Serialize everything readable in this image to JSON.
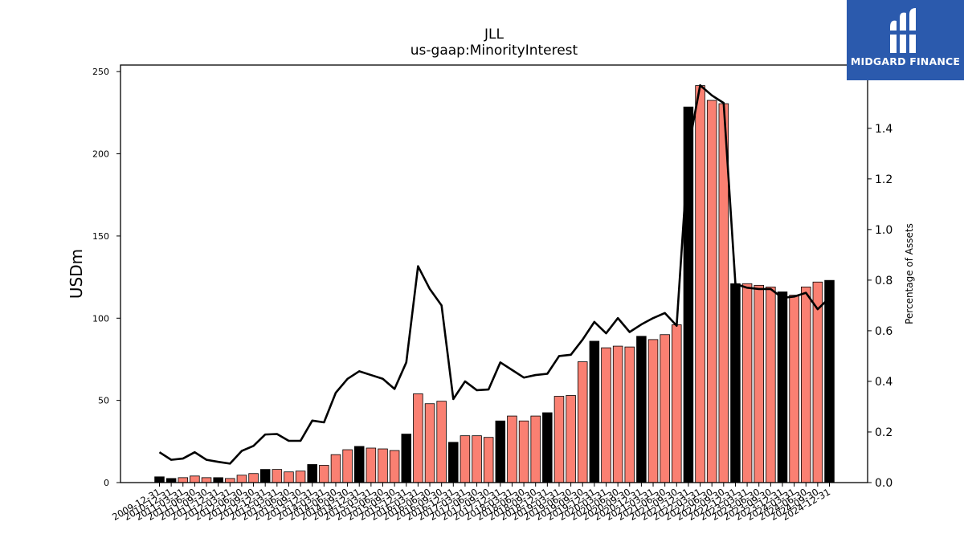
{
  "brand": {
    "name": "MIDGARD FINANCE",
    "logo_icon": "midgard-logo-icon",
    "bg_color": "#2b5aad"
  },
  "chart_data": {
    "type": "bar",
    "title": "JLL",
    "subtitle": "us-gaap:MinorityInterest",
    "ylabel": "USDm",
    "y2label": "Percentage of Assets",
    "ylim": [
      0,
      254
    ],
    "y2lim": [
      0,
      1.65
    ],
    "yticks": [
      0,
      50,
      100,
      150,
      200,
      250
    ],
    "y2ticks": [
      0.0,
      0.2,
      0.4,
      0.6,
      0.8,
      1.0,
      1.2,
      1.4
    ],
    "bar_colors": {
      "annual": "#000000",
      "quarterly": "#fa8072"
    },
    "line_color": "#000000",
    "categories": [
      "2009-12-31",
      "2010-12-31",
      "2011-03-31",
      "2011-06-30",
      "2011-09-30",
      "2011-12-31",
      "2012-03-31",
      "2012-06-30",
      "2012-09-30",
      "2012-12-31",
      "2013-03-31",
      "2013-06-30",
      "2013-09-30",
      "2013-12-31",
      "2014-03-31",
      "2014-06-30",
      "2014-09-30",
      "2014-12-31",
      "2015-03-31",
      "2015-06-30",
      "2015-09-30",
      "2015-12-31",
      "2016-03-31",
      "2016-06-30",
      "2016-09-30",
      "2016-12-31",
      "2017-03-31",
      "2017-06-30",
      "2017-09-30",
      "2017-12-31",
      "2018-03-31",
      "2018-06-30",
      "2018-09-30",
      "2018-12-31",
      "2019-03-31",
      "2019-06-30",
      "2019-09-30",
      "2019-12-31",
      "2020-03-31",
      "2020-06-30",
      "2020-09-30",
      "2020-12-31",
      "2021-03-31",
      "2021-06-30",
      "2021-09-30",
      "2021-12-31",
      "2022-03-31",
      "2022-06-30",
      "2022-09-30",
      "2022-12-31",
      "2023-03-31",
      "2023-06-30",
      "2023-09-30",
      "2023-12-31",
      "2024-03-31",
      "2024-06-30",
      "2024-09-30",
      "2024-12-31"
    ],
    "annual": [
      true,
      true,
      false,
      false,
      false,
      true,
      false,
      false,
      false,
      true,
      false,
      false,
      false,
      true,
      false,
      false,
      false,
      true,
      false,
      false,
      false,
      true,
      false,
      false,
      false,
      true,
      false,
      false,
      false,
      true,
      false,
      false,
      false,
      true,
      false,
      false,
      false,
      true,
      false,
      false,
      false,
      true,
      false,
      false,
      false,
      true,
      false,
      false,
      false,
      true,
      false,
      false,
      false,
      true,
      false,
      false,
      false,
      true
    ],
    "values": [
      3.5,
      2.5,
      3,
      4,
      3,
      3,
      2.5,
      4.5,
      5.5,
      8,
      8,
      6.5,
      7,
      11,
      10.5,
      17,
      20,
      22,
      21,
      20.5,
      19.5,
      29.5,
      54,
      48,
      49.5,
      24.5,
      28.5,
      28.5,
      27.5,
      37.5,
      40.5,
      37.5,
      40.5,
      42.5,
      52.5,
      53,
      73.5,
      86,
      82,
      83,
      82.5,
      89,
      87,
      90,
      96,
      228.5,
      241.5,
      232.5,
      230.5,
      121,
      121,
      120,
      119,
      116,
      114,
      119,
      122,
      123
    ],
    "pct": [
      0.12,
      0.09,
      0.095,
      0.12,
      0.09,
      0.082,
      0.075,
      0.125,
      0.145,
      0.19,
      0.192,
      0.165,
      0.165,
      0.245,
      0.238,
      0.355,
      0.41,
      0.44,
      0.425,
      0.41,
      0.37,
      0.475,
      0.855,
      0.765,
      0.7,
      0.33,
      0.4,
      0.365,
      0.368,
      0.475,
      0.445,
      0.415,
      0.425,
      0.43,
      0.5,
      0.505,
      0.565,
      0.635,
      0.59,
      0.65,
      0.595,
      0.625,
      0.65,
      0.67,
      0.62,
      1.32,
      1.57,
      1.53,
      1.5,
      0.785,
      0.77,
      0.765,
      0.765,
      0.73,
      0.735,
      0.75,
      0.685,
      0.73
    ]
  }
}
